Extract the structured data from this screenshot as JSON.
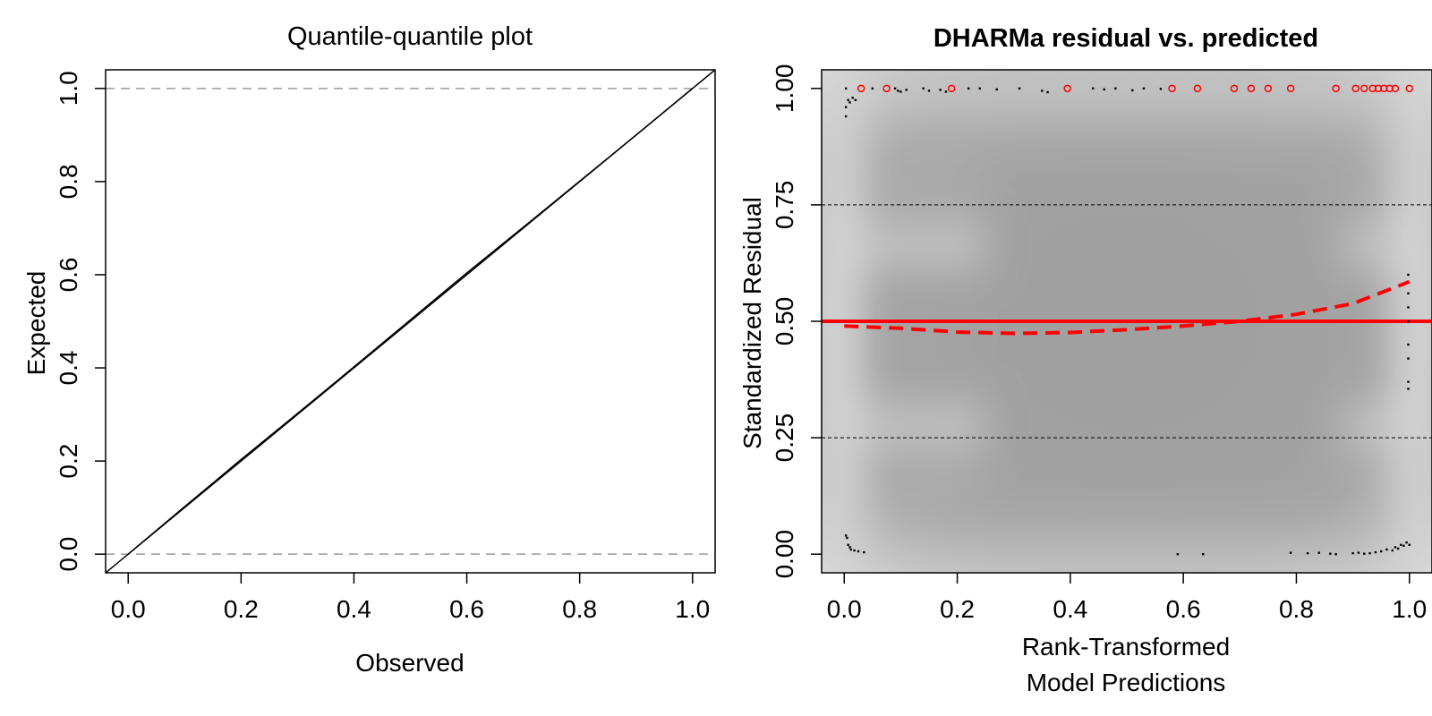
{
  "chart_data": [
    {
      "type": "line",
      "title": "Quantile-quantile plot",
      "xlabel": "Observed",
      "ylabel": "Expected",
      "xlim": [
        -0.04,
        1.04
      ],
      "ylim": [
        -0.04,
        1.04
      ],
      "xticks": [
        "0.0",
        "0.2",
        "0.4",
        "0.6",
        "0.8",
        "1.0"
      ],
      "yticks": [
        "0.0",
        "0.2",
        "0.4",
        "0.6",
        "0.8",
        "1.0"
      ],
      "reference_lines": {
        "diagonal": "y = x",
        "dashed_horizontal": [
          0,
          1
        ]
      },
      "series": [
        {
          "x": [
            0,
            0.1,
            0.2,
            0.3,
            0.4,
            0.5,
            0.6,
            0.7,
            0.8,
            0.9,
            1.0
          ],
          "values": [
            0,
            0.102,
            0.203,
            0.302,
            0.402,
            0.503,
            0.604,
            0.702,
            0.801,
            0.9,
            1.0
          ]
        }
      ]
    },
    {
      "type": "scatter",
      "title": "DHARMa residual vs. predicted",
      "xlabel": [
        "Rank-Transformed",
        "Model Predictions"
      ],
      "ylabel": "Standardized Residual",
      "xlim": [
        -0.04,
        1.04
      ],
      "ylim": [
        -0.04,
        1.04
      ],
      "xticks": [
        "0.0",
        "0.2",
        "0.4",
        "0.6",
        "0.8",
        "1.0"
      ],
      "yticks": [
        "0.00",
        "0.25",
        "0.50",
        "0.75",
        "1.00"
      ],
      "grid": "dashed horizontal at 0.25, 0.75",
      "background": "smoothed grey density",
      "reference_line": {
        "y": 0.5,
        "color": "#ff0000"
      },
      "smooth_curve": {
        "color": "#ff0000",
        "x": [
          0,
          0.1,
          0.2,
          0.3,
          0.4,
          0.5,
          0.6,
          0.7,
          0.8,
          0.9,
          1.0
        ],
        "y": [
          0.49,
          0.485,
          0.477,
          0.474,
          0.476,
          0.482,
          0.49,
          0.5,
          0.515,
          0.538,
          0.585
        ]
      },
      "points_black": [
        [
          0.003,
          1.0
        ],
        [
          0.003,
          0.96
        ],
        [
          0.003,
          0.94
        ],
        [
          0.007,
          0.975
        ],
        [
          0.01,
          0.97
        ],
        [
          0.015,
          0.98
        ],
        [
          0.02,
          0.975
        ],
        [
          0.05,
          1.0
        ],
        [
          0.09,
          1.0
        ],
        [
          0.095,
          0.995
        ],
        [
          0.1,
          0.993
        ],
        [
          0.11,
          0.997
        ],
        [
          0.14,
          1.0
        ],
        [
          0.15,
          0.995
        ],
        [
          0.17,
          0.997
        ],
        [
          0.18,
          0.993
        ],
        [
          0.22,
          1.0
        ],
        [
          0.24,
          1.0
        ],
        [
          0.27,
          0.998
        ],
        [
          0.31,
          1.0
        ],
        [
          0.35,
          0.995
        ],
        [
          0.36,
          0.992
        ],
        [
          0.44,
          1.0
        ],
        [
          0.46,
          0.998
        ],
        [
          0.48,
          1.0
        ],
        [
          0.51,
          0.996
        ],
        [
          0.53,
          1.0
        ],
        [
          0.56,
          0.999
        ],
        [
          0.003,
          0.04
        ],
        [
          0.005,
          0.035
        ],
        [
          0.007,
          0.02
        ],
        [
          0.01,
          0.015
        ],
        [
          0.012,
          0.01
        ],
        [
          0.018,
          0.008
        ],
        [
          0.025,
          0.006
        ],
        [
          0.035,
          0.004
        ],
        [
          0.59,
          0.0
        ],
        [
          0.635,
          0.0
        ],
        [
          0.79,
          0.003
        ],
        [
          0.82,
          0.002
        ],
        [
          0.84,
          0.003
        ],
        [
          0.86,
          0.001
        ],
        [
          0.87,
          0.0
        ],
        [
          0.9,
          0.002
        ],
        [
          0.91,
          0.003
        ],
        [
          0.92,
          0.001
        ],
        [
          0.93,
          0.002
        ],
        [
          0.94,
          0.004
        ],
        [
          0.95,
          0.006
        ],
        [
          0.96,
          0.01
        ],
        [
          0.97,
          0.008
        ],
        [
          0.975,
          0.015
        ],
        [
          0.98,
          0.012
        ],
        [
          0.985,
          0.02
        ],
        [
          0.99,
          0.018
        ],
        [
          0.995,
          0.025
        ],
        [
          1.0,
          0.02
        ],
        [
          0.998,
          0.6
        ],
        [
          0.998,
          0.56
        ],
        [
          0.998,
          0.53
        ],
        [
          0.998,
          0.5
        ],
        [
          0.998,
          0.45
        ],
        [
          0.998,
          0.42
        ],
        [
          0.998,
          0.37
        ],
        [
          0.998,
          0.355
        ]
      ],
      "points_red_outliers": [
        [
          0.03,
          1.0
        ],
        [
          0.075,
          1.0
        ],
        [
          0.19,
          1.0
        ],
        [
          0.395,
          1.0
        ],
        [
          0.58,
          1.0
        ],
        [
          0.625,
          1.0
        ],
        [
          0.69,
          1.0
        ],
        [
          0.72,
          1.0
        ],
        [
          0.75,
          1.0
        ],
        [
          0.79,
          1.0
        ],
        [
          0.87,
          1.0
        ],
        [
          0.905,
          1.0
        ],
        [
          0.92,
          1.0
        ],
        [
          0.935,
          1.0
        ],
        [
          0.945,
          1.0
        ],
        [
          0.955,
          1.0
        ],
        [
          0.965,
          1.0
        ],
        [
          0.975,
          1.0
        ],
        [
          1.0,
          1.0
        ]
      ],
      "colors": {
        "outliers": "#ff0000",
        "points": "#000000",
        "grid": "#000000"
      }
    }
  ]
}
